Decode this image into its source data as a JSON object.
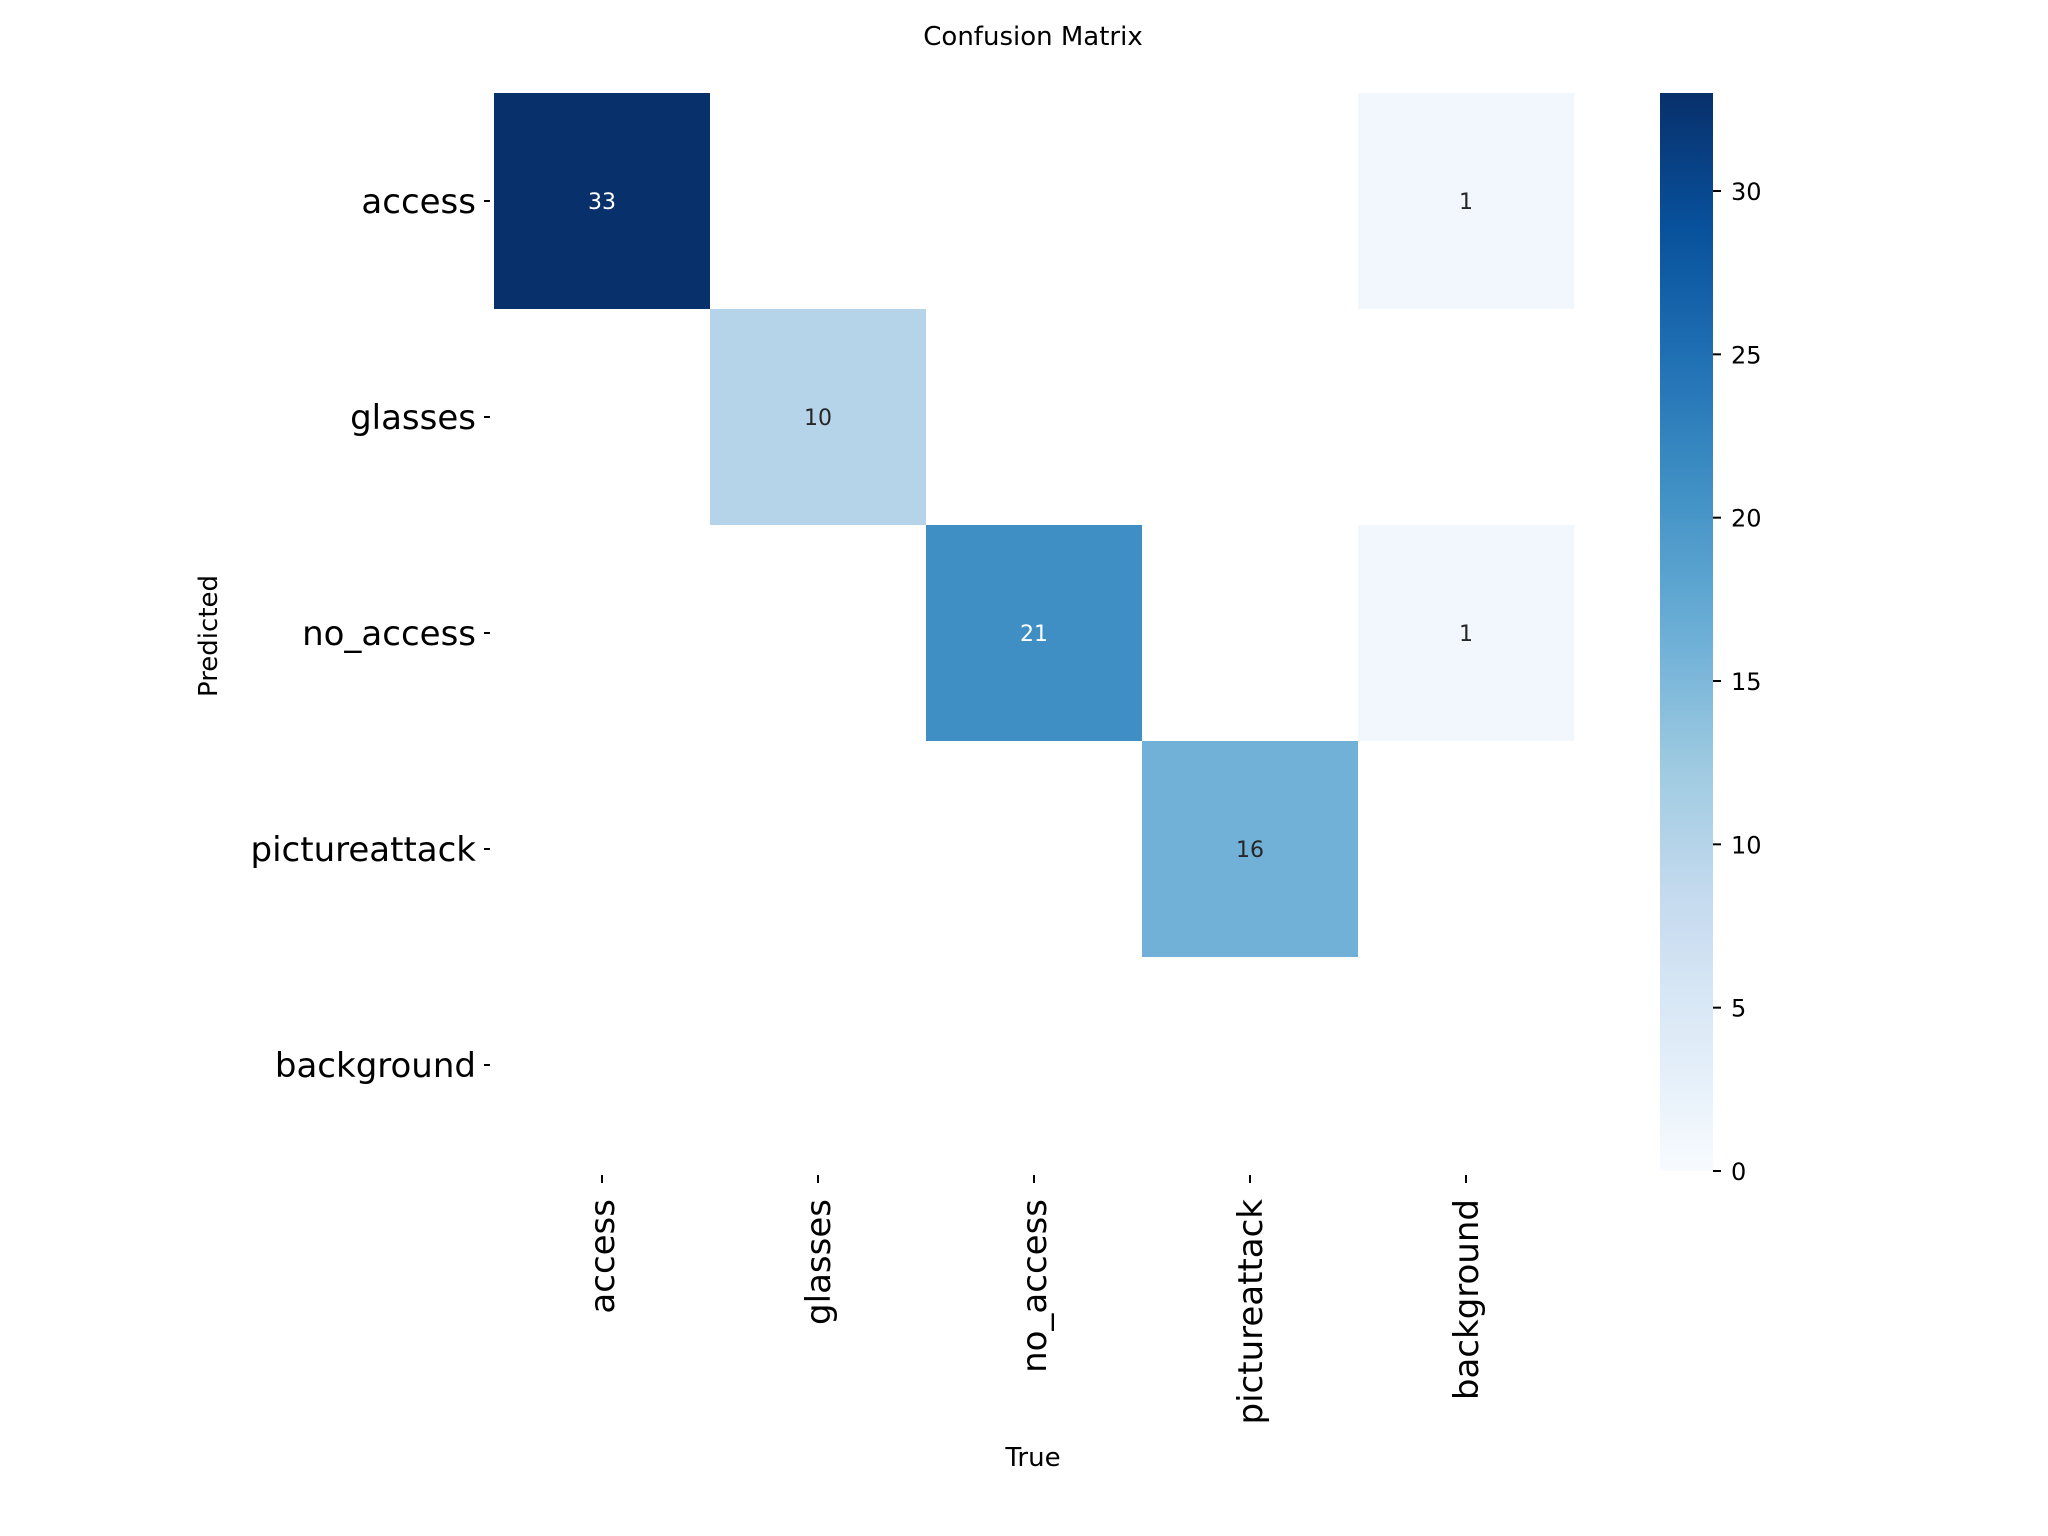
{
  "chart_data": {
    "type": "heatmap",
    "title": "Confusion Matrix",
    "xlabel": "True",
    "ylabel": "Predicted",
    "x_categories": [
      "access",
      "glasses",
      "no_access",
      "pictureattack",
      "background"
    ],
    "y_categories": [
      "access",
      "glasses",
      "no_access",
      "pictureattack",
      "background"
    ],
    "values": [
      [
        33,
        0,
        0,
        0,
        1
      ],
      [
        0,
        10,
        0,
        0,
        0
      ],
      [
        0,
        0,
        21,
        0,
        1
      ],
      [
        0,
        0,
        0,
        16,
        0
      ],
      [
        0,
        0,
        0,
        0,
        0
      ]
    ],
    "hide_zero_cells": true,
    "colormap": "Blues",
    "colorbar": {
      "range": [
        0,
        33
      ],
      "ticks": [
        0,
        5,
        10,
        15,
        20,
        25,
        30
      ]
    },
    "grid": false
  }
}
